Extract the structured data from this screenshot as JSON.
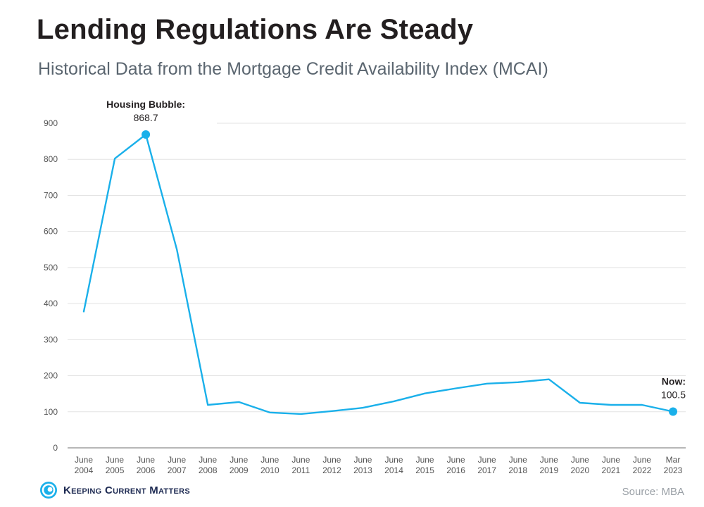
{
  "header": {
    "title": "Lending Regulations Are Steady",
    "subtitle": "Historical Data from the Mortgage Credit Availability Index (MCAI)"
  },
  "footer": {
    "brand": "Keeping Current Matters",
    "source": "Source: MBA"
  },
  "colors": {
    "line": "#1ab0ea",
    "grid": "#e3e3e3",
    "axis_text": "#555555",
    "title": "#231f20",
    "subtitle": "#5b6670"
  },
  "chart_data": {
    "type": "line",
    "categories": [
      [
        "June",
        "2004"
      ],
      [
        "June",
        "2005"
      ],
      [
        "June",
        "2006"
      ],
      [
        "June",
        "2007"
      ],
      [
        "June",
        "2008"
      ],
      [
        "June",
        "2009"
      ],
      [
        "June",
        "2010"
      ],
      [
        "June",
        "2011"
      ],
      [
        "June",
        "2012"
      ],
      [
        "June",
        "2013"
      ],
      [
        "June",
        "2014"
      ],
      [
        "June",
        "2015"
      ],
      [
        "June",
        "2016"
      ],
      [
        "June",
        "2017"
      ],
      [
        "June",
        "2018"
      ],
      [
        "June",
        "2019"
      ],
      [
        "June",
        "2020"
      ],
      [
        "June",
        "2021"
      ],
      [
        "June",
        "2022"
      ],
      [
        "Mar",
        "2023"
      ]
    ],
    "series": [
      {
        "values": [
          378,
          802,
          868.7,
          550,
          119,
          127,
          98,
          94,
          102,
          111,
          129,
          151,
          165,
          178,
          182,
          190,
          125,
          119,
          119,
          100.5
        ]
      }
    ],
    "ylim": [
      0,
      900
    ],
    "yticks": [
      0,
      100,
      200,
      300,
      400,
      500,
      600,
      700,
      800,
      900
    ],
    "grid": true,
    "annotations": [
      {
        "index": 2,
        "label": "Housing Bubble",
        "value": "868.7"
      },
      {
        "index": 19,
        "label": "Now",
        "value": "100.5"
      }
    ]
  }
}
